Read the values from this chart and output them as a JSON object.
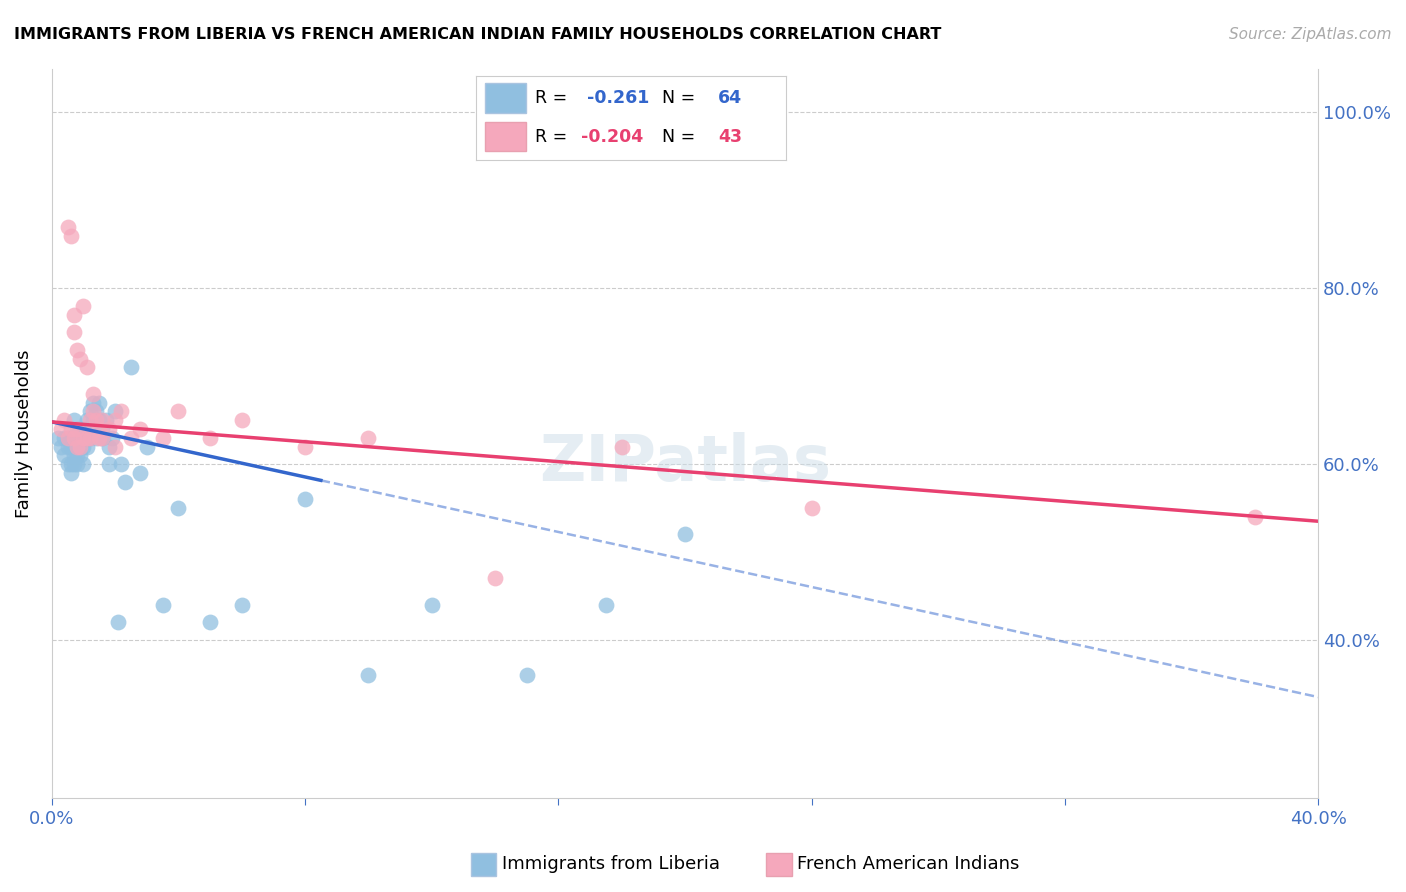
{
  "title": "IMMIGRANTS FROM LIBERIA VS FRENCH AMERICAN INDIAN FAMILY HOUSEHOLDS CORRELATION CHART",
  "source": "Source: ZipAtlas.com",
  "ylabel": "Family Households",
  "legend_label_1": "Immigrants from Liberia",
  "legend_label_2": "French American Indians",
  "R1": -0.261,
  "N1": 64,
  "R2": -0.204,
  "N2": 43,
  "color1": "#90bfe0",
  "color2": "#f5a8bc",
  "line_color1": "#3366cc",
  "line_color2": "#e84070",
  "xlim": [
    0.0,
    0.4
  ],
  "ylim": [
    0.22,
    1.05
  ],
  "blue_x": [
    0.002,
    0.003,
    0.004,
    0.004,
    0.005,
    0.005,
    0.005,
    0.006,
    0.006,
    0.006,
    0.006,
    0.007,
    0.007,
    0.007,
    0.007,
    0.007,
    0.008,
    0.008,
    0.008,
    0.008,
    0.008,
    0.009,
    0.009,
    0.009,
    0.009,
    0.01,
    0.01,
    0.01,
    0.01,
    0.011,
    0.011,
    0.011,
    0.012,
    0.012,
    0.012,
    0.013,
    0.013,
    0.014,
    0.014,
    0.015,
    0.015,
    0.016,
    0.016,
    0.017,
    0.018,
    0.018,
    0.019,
    0.02,
    0.021,
    0.022,
    0.023,
    0.025,
    0.028,
    0.03,
    0.035,
    0.04,
    0.05,
    0.06,
    0.08,
    0.1,
    0.12,
    0.15,
    0.175,
    0.2
  ],
  "blue_y": [
    0.63,
    0.62,
    0.63,
    0.61,
    0.6,
    0.63,
    0.62,
    0.59,
    0.62,
    0.63,
    0.6,
    0.61,
    0.65,
    0.62,
    0.6,
    0.63,
    0.6,
    0.62,
    0.64,
    0.61,
    0.63,
    0.63,
    0.61,
    0.64,
    0.62,
    0.63,
    0.62,
    0.64,
    0.6,
    0.65,
    0.62,
    0.63,
    0.66,
    0.64,
    0.63,
    0.65,
    0.67,
    0.63,
    0.66,
    0.65,
    0.67,
    0.64,
    0.63,
    0.65,
    0.62,
    0.6,
    0.63,
    0.66,
    0.42,
    0.6,
    0.58,
    0.71,
    0.59,
    0.62,
    0.44,
    0.55,
    0.42,
    0.44,
    0.56,
    0.36,
    0.44,
    0.36,
    0.44,
    0.52
  ],
  "pink_x": [
    0.003,
    0.004,
    0.005,
    0.005,
    0.006,
    0.006,
    0.007,
    0.007,
    0.007,
    0.008,
    0.008,
    0.008,
    0.009,
    0.009,
    0.01,
    0.01,
    0.011,
    0.011,
    0.012,
    0.012,
    0.013,
    0.013,
    0.014,
    0.015,
    0.015,
    0.016,
    0.016,
    0.018,
    0.02,
    0.02,
    0.022,
    0.025,
    0.028,
    0.035,
    0.04,
    0.05,
    0.06,
    0.08,
    0.1,
    0.14,
    0.18,
    0.24,
    0.38
  ],
  "pink_y": [
    0.64,
    0.65,
    0.63,
    0.87,
    0.64,
    0.86,
    0.63,
    0.75,
    0.77,
    0.64,
    0.62,
    0.73,
    0.62,
    0.72,
    0.63,
    0.78,
    0.63,
    0.71,
    0.63,
    0.65,
    0.68,
    0.66,
    0.65,
    0.63,
    0.64,
    0.63,
    0.65,
    0.64,
    0.65,
    0.62,
    0.66,
    0.63,
    0.64,
    0.63,
    0.66,
    0.63,
    0.65,
    0.62,
    0.63,
    0.47,
    0.62,
    0.55,
    0.54
  ],
  "blue_line_x0": 0.0,
  "blue_line_x_solid_end": 0.085,
  "blue_line_x1": 0.4,
  "blue_line_y0": 0.648,
  "blue_line_y1": 0.335,
  "pink_line_x0": 0.0,
  "pink_line_x1": 0.4,
  "pink_line_y0": 0.648,
  "pink_line_y1": 0.535
}
